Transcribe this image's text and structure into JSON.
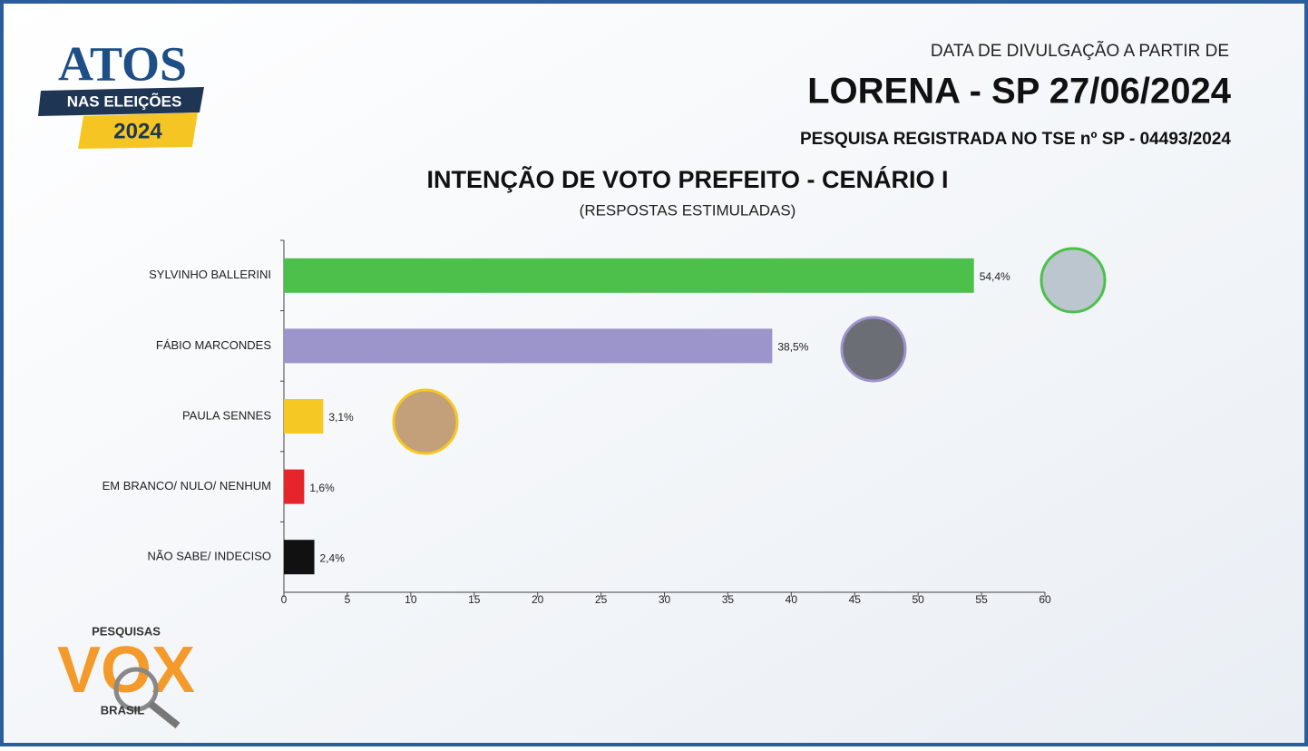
{
  "header": {
    "release_label": "DATA DE DIVULGAÇÃO A PARTIR DE",
    "place_date": "LORENA - SP 27/06/2024",
    "registration": "PESQUISA REGISTRADA NO TSE nº SP - 04493/2024"
  },
  "logos": {
    "atos": "ATOS",
    "elections": "NAS ELEIÇÕES",
    "year": "2024",
    "vox_top": "PESQUISAS",
    "vox": "VOX",
    "vox_bottom": "BRASIL"
  },
  "chart_data": {
    "type": "hbar",
    "title": "INTENÇÃO DE VOTO PREFEITO - CENÁRIO I",
    "subtitle": "(RESPOSTAS ESTIMULADAS)",
    "categories": [
      "SYLVINHO BALLERINI",
      "FÁBIO MARCONDES",
      "PAULA SENNES",
      "EM BRANCO/ NULO/ NENHUM",
      "NÃO SABE/ INDECISO"
    ],
    "values": [
      54.4,
      38.5,
      3.1,
      1.6,
      2.4
    ],
    "value_labels": [
      "54,4%",
      "38,5%",
      "3,1%",
      "1,6%",
      "2,4%"
    ],
    "colors": [
      "#4cc04a",
      "#9c95cc",
      "#f5c823",
      "#e5252b",
      "#111111"
    ],
    "xlim": [
      0,
      60
    ],
    "xticks": [
      0,
      5,
      10,
      15,
      20,
      25,
      30,
      35,
      40,
      45,
      50,
      55,
      60
    ]
  }
}
